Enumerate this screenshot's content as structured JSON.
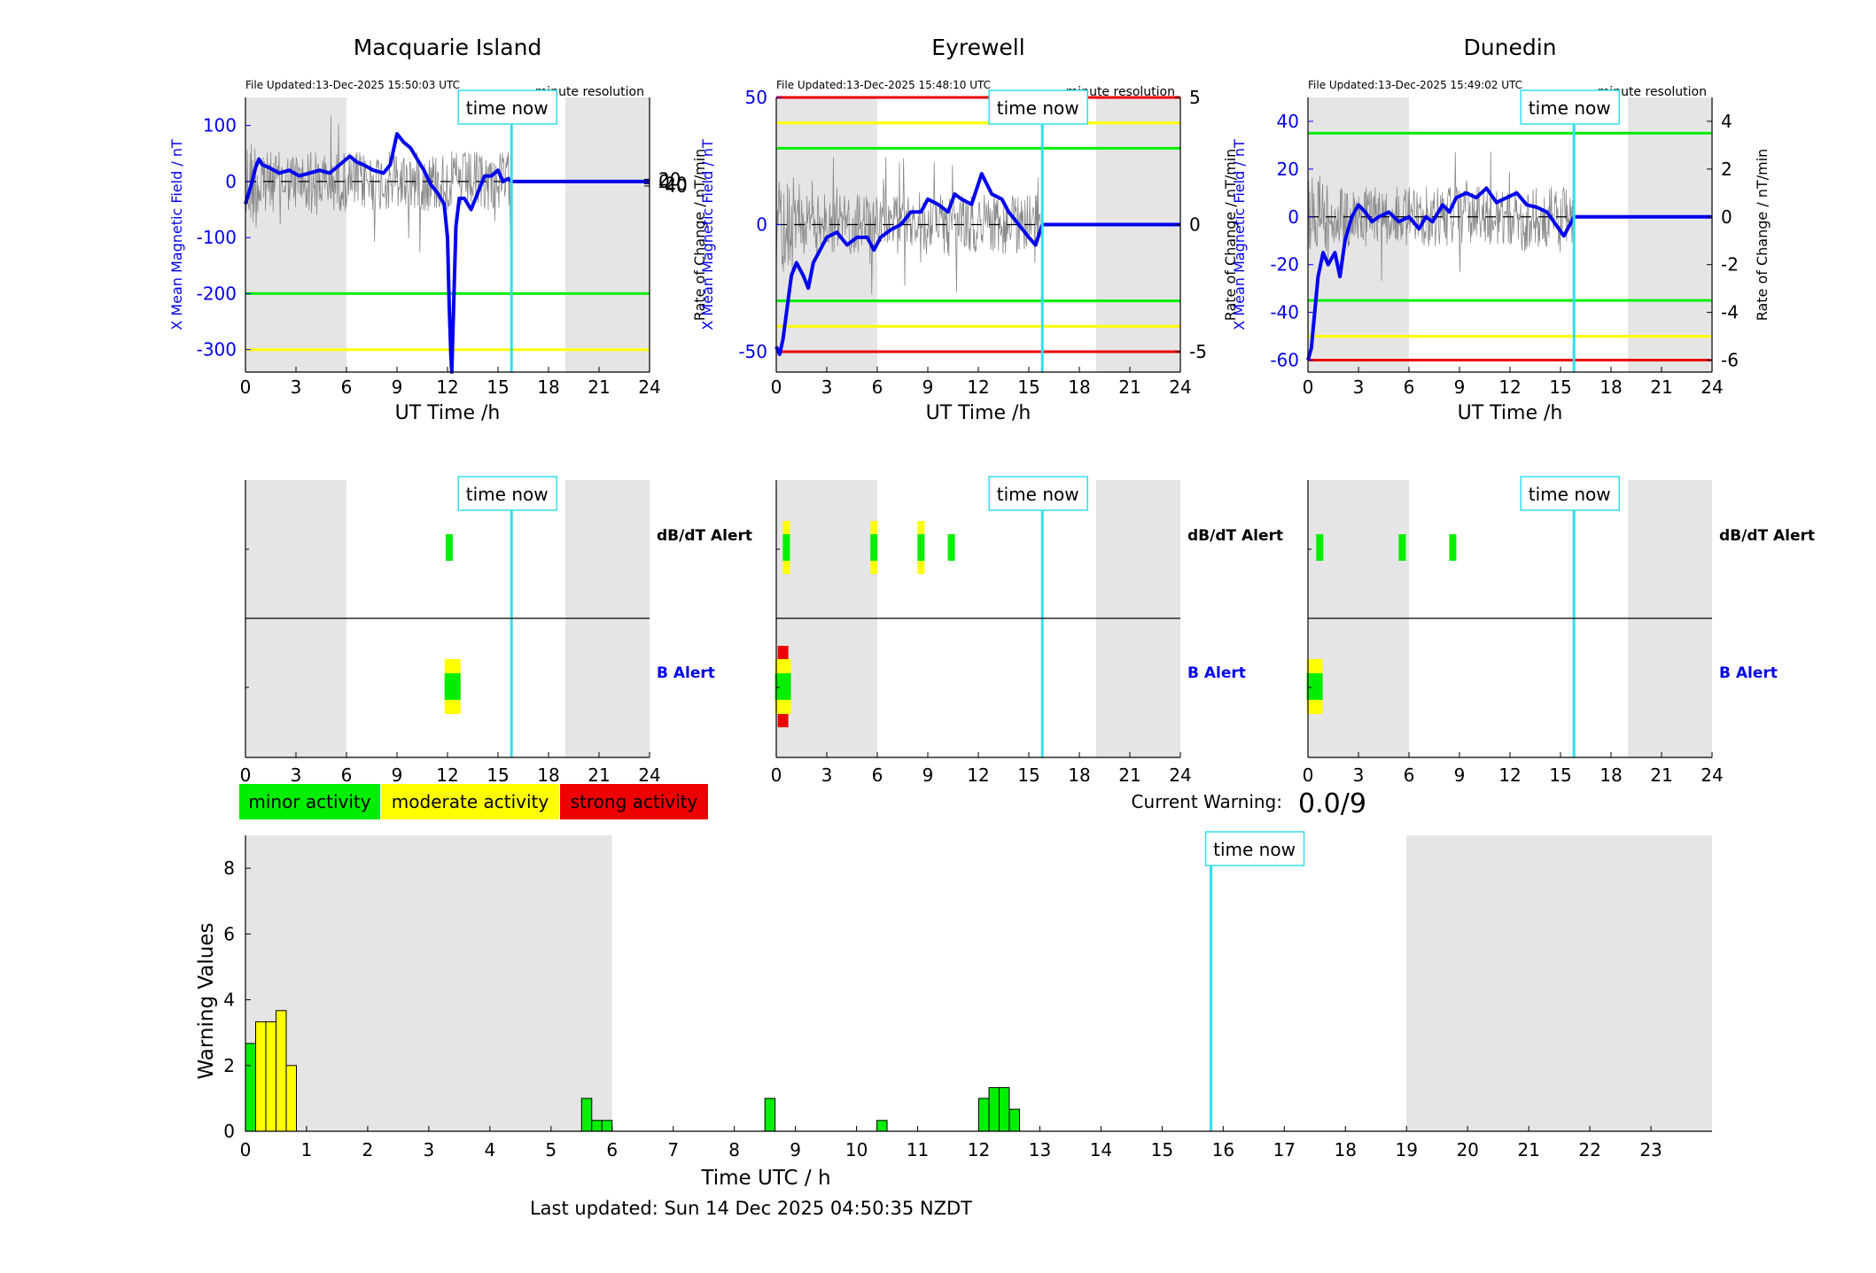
{
  "colors": {
    "blue": "#0000ee",
    "cyan": "#33ddee",
    "green": "#00ee00",
    "yellow": "#ffff00",
    "red": "#ee0000",
    "grey": "#e5e5e5",
    "noise": "#888888"
  },
  "panels": [
    {
      "title": "Macquarie Island",
      "file_updated": "File Updated:13-Dec-2025 15:50:03 UTC",
      "resolution": "minute resolution",
      "now_label": "time now",
      "left_label": "X Mean Magnetic Field / nT",
      "right_label": "Rate of Change / nT/min",
      "x_label": "UT Time /h",
      "left_ylim": [
        -340,
        150
      ],
      "left_ticks": [
        100,
        0,
        -100,
        -200,
        -300
      ],
      "right_ticks": [
        20,
        0,
        -20,
        -40
      ],
      "right_scale": 0.2,
      "shaded": [
        [
          0,
          6
        ],
        [
          19,
          24
        ]
      ],
      "now_h": 15.8,
      "thresholds": [
        {
          "value": -200,
          "color": "green"
        },
        {
          "value": -300,
          "color": "yellow"
        }
      ],
      "trace": [
        [
          0,
          -40
        ],
        [
          0.2,
          -20
        ],
        [
          0.4,
          0
        ],
        [
          0.6,
          25
        ],
        [
          0.8,
          40
        ],
        [
          1.0,
          30
        ],
        [
          1.4,
          25
        ],
        [
          2,
          15
        ],
        [
          2.6,
          20
        ],
        [
          3.2,
          10
        ],
        [
          3.8,
          15
        ],
        [
          4.4,
          20
        ],
        [
          5,
          15
        ],
        [
          5.6,
          30
        ],
        [
          6.2,
          45
        ],
        [
          6.6,
          35
        ],
        [
          7,
          30
        ],
        [
          7.6,
          20
        ],
        [
          8.2,
          15
        ],
        [
          8.6,
          30
        ],
        [
          9,
          85
        ],
        [
          9.4,
          70
        ],
        [
          9.8,
          60
        ],
        [
          10.2,
          40
        ],
        [
          10.6,
          20
        ],
        [
          11,
          -5
        ],
        [
          11.4,
          -20
        ],
        [
          11.8,
          -40
        ],
        [
          12.0,
          -100
        ],
        [
          12.1,
          -220
        ],
        [
          12.2,
          -310
        ],
        [
          12.25,
          -340
        ],
        [
          12.35,
          -240
        ],
        [
          12.5,
          -80
        ],
        [
          12.7,
          -30
        ],
        [
          13,
          -30
        ],
        [
          13.4,
          -50
        ],
        [
          13.8,
          -20
        ],
        [
          14.2,
          10
        ],
        [
          14.6,
          10
        ],
        [
          15,
          20
        ],
        [
          15.3,
          0
        ],
        [
          15.6,
          5
        ],
        [
          15.8,
          0
        ],
        [
          24,
          0
        ]
      ],
      "alerts": {
        "dbdt": [
          {
            "t": 12.1,
            "color": "green"
          }
        ],
        "b": [
          {
            "t": 12.3,
            "green": true,
            "yellow": true,
            "red": false
          }
        ]
      }
    },
    {
      "title": "Eyrewell",
      "file_updated": "File Updated:13-Dec-2025 15:48:10 UTC",
      "resolution": "minute resolution",
      "now_label": "time now",
      "left_label": "X Mean Magnetic Field / nT",
      "right_label": "Rate of Change / nT/min",
      "x_label": "UT Time /h",
      "left_ylim": [
        -58,
        50
      ],
      "left_ticks": [
        50,
        0,
        -50
      ],
      "right_ticks": [
        5,
        0,
        -5
      ],
      "right_scale": 10,
      "shaded": [
        [
          0,
          6
        ],
        [
          19,
          24
        ]
      ],
      "now_h": 15.8,
      "thresholds": [
        {
          "value": 50,
          "color": "red"
        },
        {
          "value": 40,
          "color": "yellow"
        },
        {
          "value": 30,
          "color": "green"
        },
        {
          "value": -30,
          "color": "green"
        },
        {
          "value": -40,
          "color": "yellow"
        },
        {
          "value": -50,
          "color": "red"
        }
      ],
      "trace": [
        [
          0,
          -48
        ],
        [
          0.2,
          -51
        ],
        [
          0.4,
          -45
        ],
        [
          0.6,
          -35
        ],
        [
          0.9,
          -20
        ],
        [
          1.2,
          -15
        ],
        [
          1.6,
          -20
        ],
        [
          1.9,
          -25
        ],
        [
          2.2,
          -15
        ],
        [
          2.6,
          -10
        ],
        [
          3,
          -5
        ],
        [
          3.6,
          -3
        ],
        [
          4.2,
          -8
        ],
        [
          4.8,
          -5
        ],
        [
          5.4,
          -5
        ],
        [
          5.8,
          -10
        ],
        [
          6.2,
          -5
        ],
        [
          6.8,
          -2
        ],
        [
          7.4,
          0
        ],
        [
          8,
          5
        ],
        [
          8.6,
          5
        ],
        [
          9,
          10
        ],
        [
          9.6,
          8
        ],
        [
          10.2,
          5
        ],
        [
          10.6,
          12
        ],
        [
          11,
          10
        ],
        [
          11.6,
          8
        ],
        [
          12.2,
          20
        ],
        [
          12.8,
          12
        ],
        [
          13.4,
          10
        ],
        [
          13.8,
          5
        ],
        [
          14.4,
          0
        ],
        [
          15,
          -5
        ],
        [
          15.4,
          -8
        ],
        [
          15.6,
          -4
        ],
        [
          15.8,
          0
        ],
        [
          24,
          0
        ]
      ],
      "alerts": {
        "dbdt": [
          {
            "t": 0.6,
            "green": true,
            "yellow": true
          },
          {
            "t": 5.8,
            "green": true,
            "yellow": true
          },
          {
            "t": 8.6,
            "green": true,
            "yellow": true
          },
          {
            "t": 10.4,
            "green": true,
            "yellow": false
          }
        ],
        "b": [
          {
            "t": 0.4,
            "green": true,
            "yellow": true,
            "red": true
          }
        ]
      }
    },
    {
      "title": "Dunedin",
      "file_updated": "File Updated:13-Dec-2025 15:49:02 UTC",
      "resolution": "minute resolution",
      "now_label": "time now",
      "left_label": "X Mean Magnetic Field / nT",
      "right_label": "Rate of Change / nT/min",
      "x_label": "UT Time /h",
      "left_ylim": [
        -65,
        50
      ],
      "left_ticks": [
        40,
        20,
        0,
        -20,
        -40,
        -60
      ],
      "right_ticks": [
        4,
        2,
        0,
        -2,
        -4,
        -6
      ],
      "right_scale": 10,
      "shaded": [
        [
          0,
          6
        ],
        [
          19,
          24
        ]
      ],
      "now_h": 15.8,
      "thresholds": [
        {
          "value": 35,
          "color": "green"
        },
        {
          "value": -35,
          "color": "green"
        },
        {
          "value": -50,
          "color": "yellow"
        },
        {
          "value": -60,
          "color": "red"
        }
      ],
      "trace": [
        [
          0,
          -60
        ],
        [
          0.2,
          -55
        ],
        [
          0.4,
          -40
        ],
        [
          0.6,
          -25
        ],
        [
          0.9,
          -15
        ],
        [
          1.2,
          -20
        ],
        [
          1.6,
          -15
        ],
        [
          1.9,
          -25
        ],
        [
          2.2,
          -10
        ],
        [
          2.6,
          0
        ],
        [
          3,
          5
        ],
        [
          3.4,
          2
        ],
        [
          3.8,
          -2
        ],
        [
          4.2,
          0
        ],
        [
          4.8,
          2
        ],
        [
          5.4,
          -2
        ],
        [
          6,
          0
        ],
        [
          6.6,
          -5
        ],
        [
          7,
          0
        ],
        [
          7.4,
          -2
        ],
        [
          8,
          5
        ],
        [
          8.4,
          2
        ],
        [
          8.8,
          8
        ],
        [
          9.4,
          10
        ],
        [
          10,
          8
        ],
        [
          10.6,
          12
        ],
        [
          11.2,
          6
        ],
        [
          11.8,
          8
        ],
        [
          12.4,
          10
        ],
        [
          13,
          5
        ],
        [
          13.6,
          4
        ],
        [
          14.2,
          2
        ],
        [
          14.8,
          -4
        ],
        [
          15.2,
          -8
        ],
        [
          15.5,
          -4
        ],
        [
          15.8,
          0
        ],
        [
          24,
          0
        ]
      ],
      "alerts": {
        "dbdt": [
          {
            "t": 0.7,
            "green": true,
            "yellow": false
          },
          {
            "t": 5.6,
            "green": true,
            "yellow": false
          },
          {
            "t": 8.6,
            "green": true,
            "yellow": false
          }
        ],
        "b": [
          {
            "t": 0.4,
            "green": true,
            "yellow": true,
            "red": false
          }
        ]
      }
    }
  ],
  "alert_labels": {
    "dbdt": "dB/dT Alert",
    "b": "B Alert"
  },
  "alert_now_label": "time now",
  "x_ticks_24": [
    0,
    3,
    6,
    9,
    12,
    15,
    18,
    21,
    24
  ],
  "legend": [
    {
      "label": "minor activity",
      "color": "green"
    },
    {
      "label": "moderate activity",
      "color": "yellow"
    },
    {
      "label": "strong activity",
      "color": "red"
    }
  ],
  "current_warning": {
    "label": "Current Warning:",
    "value": "0.0/9"
  },
  "chart_data": {
    "type": "bar",
    "title": "",
    "xlabel": "Time UTC / h",
    "ylabel": "Warning Values",
    "xlim": [
      0,
      24
    ],
    "ylim": [
      0,
      9
    ],
    "y_ticks": [
      0,
      2,
      4,
      6,
      8
    ],
    "x_ticks": [
      0,
      1,
      2,
      3,
      4,
      5,
      6,
      7,
      8,
      9,
      10,
      11,
      12,
      13,
      14,
      15,
      16,
      17,
      18,
      19,
      20,
      21,
      22,
      23
    ],
    "shaded": [
      [
        0,
        6
      ],
      [
        19,
        24
      ]
    ],
    "now_h": 15.8,
    "now_label": "time now",
    "bar_width_h": 0.1667,
    "bars": [
      {
        "t": 0.0,
        "value": 2.67,
        "color": "green"
      },
      {
        "t": 0.167,
        "value": 3.33,
        "color": "yellow"
      },
      {
        "t": 0.333,
        "value": 3.33,
        "color": "yellow"
      },
      {
        "t": 0.5,
        "value": 3.67,
        "color": "yellow"
      },
      {
        "t": 0.667,
        "value": 2.0,
        "color": "yellow"
      },
      {
        "t": 5.5,
        "value": 1.0,
        "color": "green"
      },
      {
        "t": 5.667,
        "value": 0.33,
        "color": "green"
      },
      {
        "t": 5.833,
        "value": 0.33,
        "color": "green"
      },
      {
        "t": 8.5,
        "value": 1.0,
        "color": "green"
      },
      {
        "t": 10.333,
        "value": 0.33,
        "color": "green"
      },
      {
        "t": 12.0,
        "value": 1.0,
        "color": "green"
      },
      {
        "t": 12.167,
        "value": 1.33,
        "color": "green"
      },
      {
        "t": 12.333,
        "value": 1.33,
        "color": "green"
      },
      {
        "t": 12.5,
        "value": 0.67,
        "color": "green"
      }
    ]
  },
  "footer": "Last updated: Sun 14 Dec 2025 04:50:35 NZDT"
}
